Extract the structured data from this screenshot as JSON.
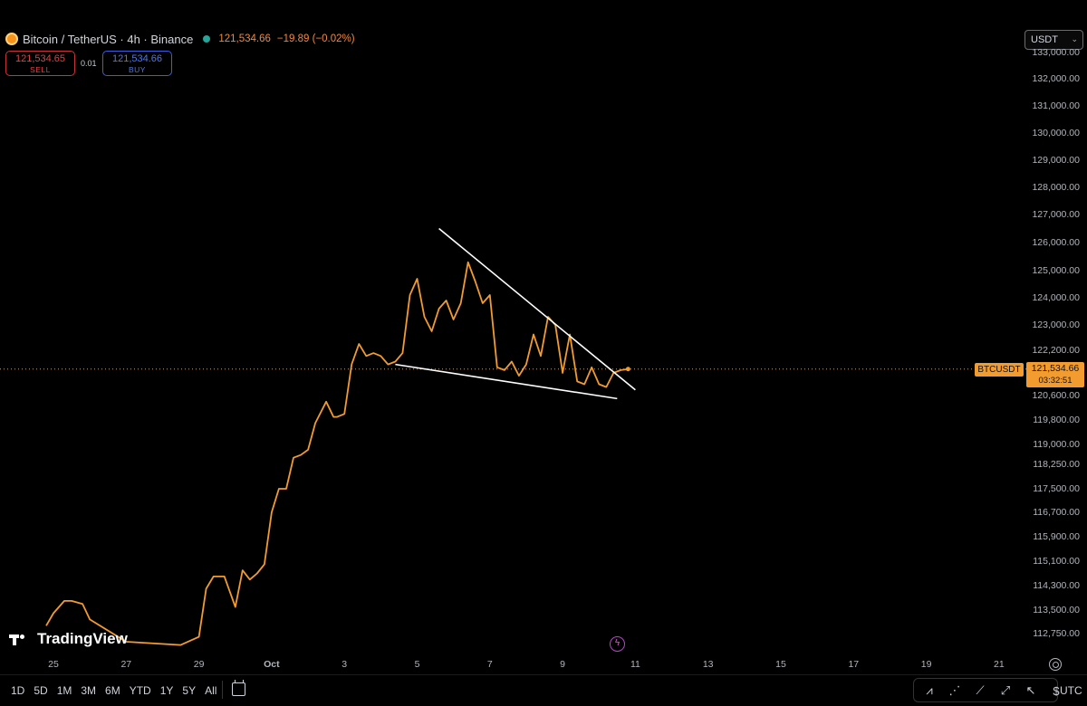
{
  "header": {
    "symbol_title": "Bitcoin / TetherUS · 4h · Binance",
    "last_price": "121,534.66",
    "change": "−19.89 (−0.02%)"
  },
  "trade": {
    "sell_price": "121,534.65",
    "sell_label": "SELL",
    "spread": "0.01",
    "buy_price": "121,534.66",
    "buy_label": "BUY"
  },
  "currency": "USDT",
  "price_tag": {
    "symbol": "BTCUSDT",
    "price": "121,534.66",
    "countdown": "03:32:51"
  },
  "price_ticks": [
    {
      "label": "133,000.00",
      "value": 133000
    },
    {
      "label": "132,000.00",
      "value": 132000
    },
    {
      "label": "131,000.00",
      "value": 131000
    },
    {
      "label": "130,000.00",
      "value": 130000
    },
    {
      "label": "129,000.00",
      "value": 129000
    },
    {
      "label": "128,000.00",
      "value": 128000
    },
    {
      "label": "127,000.00",
      "value": 127000
    },
    {
      "label": "126,000.00",
      "value": 126000
    },
    {
      "label": "125,000.00",
      "value": 125000
    },
    {
      "label": "124,000.00",
      "value": 124000
    },
    {
      "label": "123,000.00",
      "value": 123000
    },
    {
      "label": "122,200.00",
      "value": 122200
    },
    {
      "label": "120,600.00",
      "value": 120600
    },
    {
      "label": "119,800.00",
      "value": 119800
    },
    {
      "label": "119,000.00",
      "value": 119000
    },
    {
      "label": "118,250.00",
      "value": 118250
    },
    {
      "label": "117,500.00",
      "value": 117500
    },
    {
      "label": "116,700.00",
      "value": 116700
    },
    {
      "label": "115,900.00",
      "value": 115900
    },
    {
      "label": "115,100.00",
      "value": 115100
    },
    {
      "label": "114,300.00",
      "value": 114300
    },
    {
      "label": "113,500.00",
      "value": 113500
    },
    {
      "label": "112,750.00",
      "value": 112750
    }
  ],
  "time_ticks": [
    {
      "label": "25",
      "day": 25
    },
    {
      "label": "27",
      "day": 27
    },
    {
      "label": "29",
      "day": 29
    },
    {
      "label": "Oct",
      "day": 31
    },
    {
      "label": "3",
      "day": 33
    },
    {
      "label": "5",
      "day": 35
    },
    {
      "label": "7",
      "day": 37
    },
    {
      "label": "9",
      "day": 39
    },
    {
      "label": "11",
      "day": 41
    },
    {
      "label": "13",
      "day": 43
    },
    {
      "label": "15",
      "day": 45
    },
    {
      "label": "17",
      "day": 47
    },
    {
      "label": "19",
      "day": 49
    },
    {
      "label": "21",
      "day": 51
    }
  ],
  "chart_data": {
    "type": "line",
    "x": [
      24.8,
      25.0,
      25.3,
      25.5,
      25.8,
      26.0,
      27.0,
      28.5,
      29.0,
      29.2,
      29.4,
      29.7,
      30.0,
      30.2,
      30.4,
      30.6,
      30.8,
      31.0,
      31.2,
      31.4,
      31.6,
      31.8,
      32.0,
      32.2,
      32.5,
      32.7,
      32.8,
      33.0,
      33.2,
      33.4,
      33.6,
      33.8,
      34.0,
      34.2,
      34.4,
      34.6,
      34.8,
      35.0,
      35.2,
      35.4,
      35.6,
      35.8,
      36.0,
      36.2,
      36.4,
      36.6,
      36.8,
      37.0,
      37.2,
      37.4,
      37.6,
      37.8,
      38.0,
      38.2,
      38.4,
      38.6,
      38.8,
      39.0,
      39.2,
      39.4,
      39.6,
      39.8,
      40.0,
      40.2,
      40.4,
      40.6,
      40.8
    ],
    "y": [
      113000,
      113400,
      113800,
      113800,
      113700,
      113200,
      112500,
      112400,
      112650,
      114200,
      114600,
      114600,
      113600,
      114800,
      114500,
      114700,
      115000,
      116700,
      117500,
      117500,
      118500,
      118600,
      118800,
      119700,
      120400,
      119900,
      119900,
      120000,
      121700,
      122400,
      122000,
      122100,
      122000,
      121700,
      121800,
      122100,
      124100,
      124700,
      123300,
      122800,
      123600,
      123900,
      123200,
      123800,
      125300,
      124600,
      123800,
      124100,
      121600,
      121500,
      121800,
      121300,
      121700,
      122700,
      122000,
      123300,
      123000,
      121400,
      122700,
      121100,
      121000,
      121600,
      121000,
      120900,
      121400,
      121500,
      121534.66
    ],
    "current_price": 121534.66,
    "trendlines": [
      {
        "x": [
          34.4,
          40.5
        ],
        "y": [
          121700,
          120500
        ]
      },
      {
        "x": [
          35.6,
          41.0
        ],
        "y": [
          126500,
          120800
        ]
      }
    ],
    "xlabel": "",
    "ylabel": ""
  },
  "logo_text": "TradingView",
  "ranges": [
    "1D",
    "5D",
    "1M",
    "3M",
    "6M",
    "YTD",
    "1Y",
    "5Y",
    "All"
  ],
  "tools": [
    {
      "name": "pattern-tool-icon",
      "glyph": "⩘"
    },
    {
      "name": "fib-tool-icon",
      "glyph": "⋰"
    },
    {
      "name": "trend-line-tool-icon",
      "glyph": "⟋"
    },
    {
      "name": "ray-tool-icon",
      "glyph": "⤢"
    },
    {
      "name": "cursor-tool-icon",
      "glyph": "↖"
    },
    {
      "name": "price-range-tool-icon",
      "glyph": "$"
    }
  ],
  "timezone": "UTC",
  "colors": {
    "line": "#f29b2e",
    "trendline": "#ffffff",
    "sell": "#e04148",
    "buy": "#4b78f0",
    "live": "#26a69a"
  }
}
